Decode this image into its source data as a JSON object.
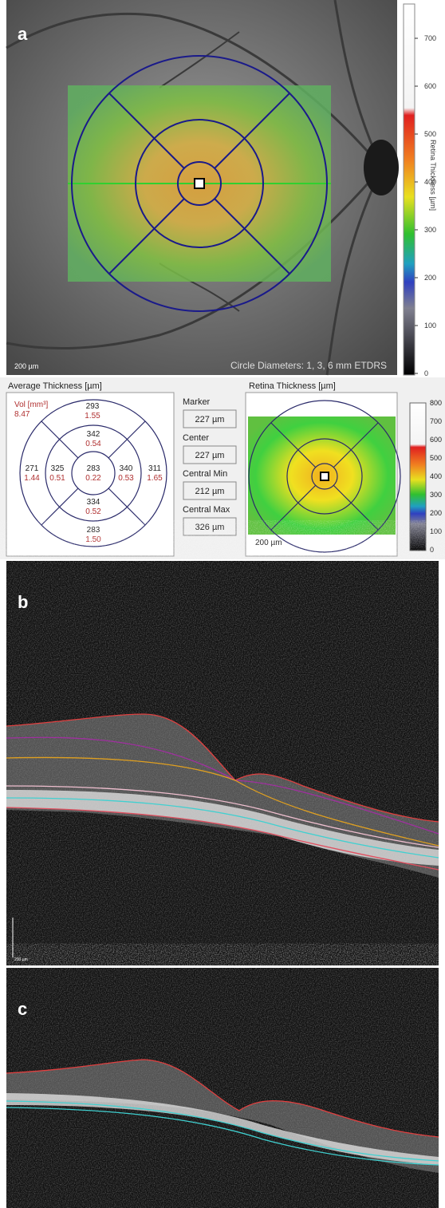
{
  "panel_a": {
    "label": "a",
    "scale_bar": "200 µm",
    "caption": "Circle Diameters: 1, 3, 6 mm ETDRS",
    "colorbar": {
      "title": "Retina Thickness [µm]",
      "ticks": [
        "0",
        "100",
        "200",
        "300",
        "400",
        "500",
        "600",
        "700"
      ]
    }
  },
  "thickness_panel": {
    "title": "Average Thickness [µm]",
    "volume_label": "Vol [mm³]",
    "volume": "8.47",
    "sectors": [
      {
        "thickness": "293",
        "volume": "1.55"
      },
      {
        "thickness": "342",
        "volume": "0.54"
      },
      {
        "thickness": "271",
        "volume": "1.44"
      },
      {
        "thickness": "325",
        "volume": "0.51"
      },
      {
        "thickness": "283",
        "volume": "0.22"
      },
      {
        "thickness": "340",
        "volume": "0.53"
      },
      {
        "thickness": "311",
        "volume": "1.65"
      },
      {
        "thickness": "334",
        "volume": "0.52"
      },
      {
        "thickness": "283",
        "volume": "1.50"
      }
    ]
  },
  "measurements": [
    {
      "label": "Marker",
      "value": "227 µm"
    },
    {
      "label": "Center",
      "value": "227 µm"
    },
    {
      "label": "Central Min",
      "value": "212 µm"
    },
    {
      "label": "Central Max",
      "value": "326 µm"
    }
  ],
  "map_panel": {
    "title": "Retina Thickness [µm]",
    "scale_bar": "200 µm",
    "colorbar_ticks": [
      "0",
      "100",
      "200",
      "300",
      "400",
      "500",
      "600",
      "700",
      "800"
    ]
  },
  "panel_b": {
    "label": "b",
    "scale_bar": "200 µm"
  },
  "panel_c": {
    "label": "c"
  }
}
